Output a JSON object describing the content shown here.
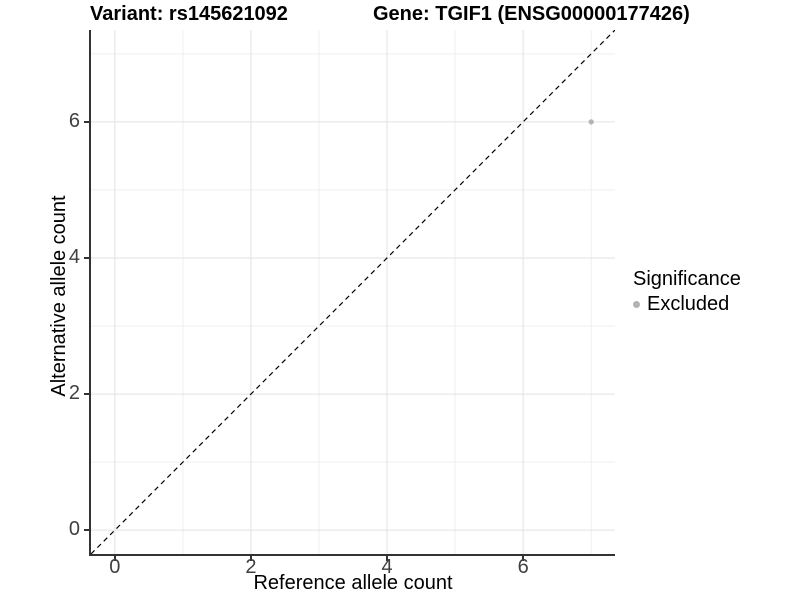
{
  "figure": {
    "title_left": "Variant: rs145621092",
    "title_right": "Gene: TGIF1 (ENSG00000177426)"
  },
  "chart_data": {
    "type": "scatter",
    "title": "Variant: rs145621092  /  Gene: TGIF1 (ENSG00000177426)",
    "xlabel": "Reference allele count",
    "ylabel": "Alternative allele count",
    "x_range": [
      -0.35,
      7.35
    ],
    "y_range": [
      -0.35,
      7.35
    ],
    "x_breaks": [
      0,
      2,
      4,
      6
    ],
    "y_breaks": [
      0,
      2,
      4,
      6
    ],
    "x_minor_breaks": [
      1,
      3,
      5,
      7
    ],
    "y_minor_breaks": [
      1,
      3,
      5,
      7
    ],
    "grid": "on",
    "series": [
      {
        "name": "Excluded",
        "color": "#b3b3b3",
        "points": [
          {
            "x": 7,
            "y": 6
          }
        ]
      }
    ],
    "reference_line": {
      "style": "dashed",
      "color": "#000000",
      "x1": -0.35,
      "y1": -0.35,
      "x2": 7.35,
      "y2": 7.35,
      "meaning": "identity line y = x"
    },
    "legend": {
      "title": "Significance",
      "position": "right",
      "items": [
        {
          "label": "Excluded",
          "color": "#b3b3b3"
        }
      ]
    },
    "colors": {
      "grid_major": "#e2e2e2",
      "grid_minor": "#efefef",
      "axis_line": "#333333",
      "tick_label": "#404040",
      "point": "#b3b3b3"
    }
  }
}
